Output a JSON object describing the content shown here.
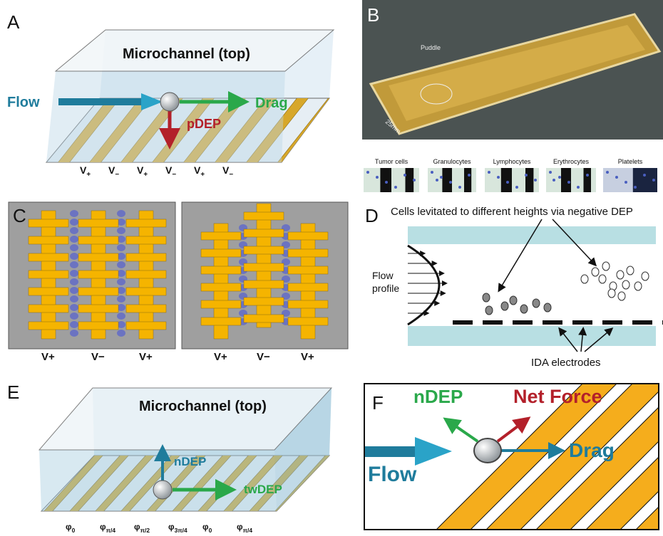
{
  "panel_a": {
    "label": "A",
    "channel_label": "Microchannel (top)",
    "flow": "Flow",
    "drag": "Drag",
    "force": "pDEP",
    "electrodes": [
      {
        "base": "V",
        "sub": "+"
      },
      {
        "base": "V",
        "sub": "−"
      },
      {
        "base": "V",
        "sub": "+"
      },
      {
        "base": "V",
        "sub": "−"
      },
      {
        "base": "V",
        "sub": "+"
      },
      {
        "base": "V",
        "sub": "−"
      }
    ]
  },
  "panel_b": {
    "label": "B",
    "puddle": "Puddle",
    "scale": "25mm",
    "cell_types": [
      "Tumor cells",
      "Granulocytes",
      "Lymphocytes",
      "Erythrocytes",
      "Platelets"
    ]
  },
  "panel_c": {
    "label": "C",
    "left_electrodes": [
      "V+",
      "V−",
      "V+"
    ],
    "right_electrodes": [
      "V+",
      "V−",
      "V+"
    ]
  },
  "panel_d": {
    "label": "D",
    "caption": "Cells levitated to different heights via negative DEP",
    "flow_profile": [
      "Flow",
      "profile"
    ],
    "electrodes": "IDA electrodes"
  },
  "panel_e": {
    "label": "E",
    "channel_label": "Microchannel (top)",
    "force_up": "nDEP",
    "force_right": "twDEP",
    "phases": [
      {
        "base": "φ",
        "sub": "0"
      },
      {
        "base": "φ",
        "sub": "π/4"
      },
      {
        "base": "φ",
        "sub": "π/2"
      },
      {
        "base": "φ",
        "sub": "3π/4"
      },
      {
        "base": "φ",
        "sub": "0"
      },
      {
        "base": "φ",
        "sub": "π/4"
      }
    ]
  },
  "panel_f": {
    "label": "F",
    "ndep": "nDEP",
    "net_force": "Net Force",
    "drag": "Drag",
    "flow": "Flow"
  }
}
